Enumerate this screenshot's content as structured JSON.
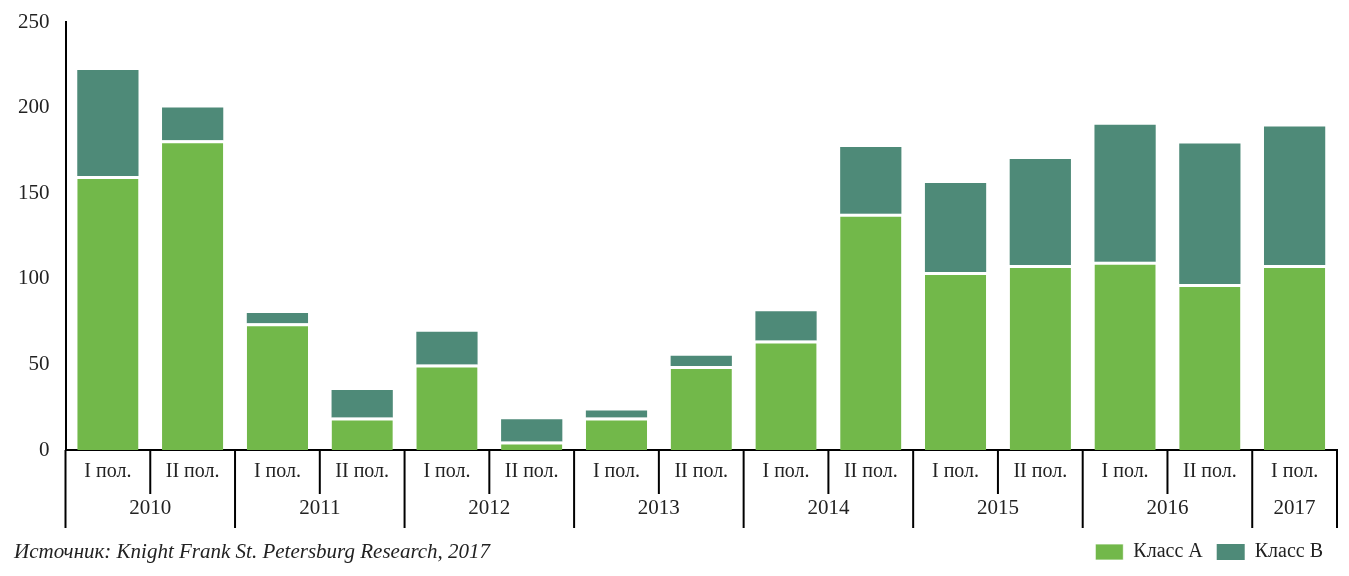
{
  "chart_data": {
    "type": "bar",
    "source": "Источник: Knight Frank St. Petersburg Research, 2017",
    "categories": [
      [
        "I пол.",
        "2010"
      ],
      [
        "II пол.",
        "2010"
      ],
      [
        "I пол.",
        "2011"
      ],
      [
        "II пол.",
        "2011"
      ],
      [
        "I пол.",
        "2012"
      ],
      [
        "II пол.",
        "2012"
      ],
      [
        "I пол.",
        "2013"
      ],
      [
        "II пол.",
        "2013"
      ],
      [
        "I пол.",
        "2014"
      ],
      [
        "II пол.",
        "2014"
      ],
      [
        "I пол.",
        "2015"
      ],
      [
        "II пол.",
        "2015"
      ],
      [
        "I пол.",
        "2016"
      ],
      [
        "II пол.",
        "2016"
      ],
      [
        "I пол.",
        "2017"
      ]
    ],
    "series": [
      {
        "name": "Класс A",
        "color": "#72b84a",
        "values": [
          160,
          181,
          74,
          19,
          50,
          5,
          19,
          49,
          64,
          138,
          104,
          108,
          110,
          97,
          108
        ]
      },
      {
        "name": "Класс B",
        "color": "#4e8a78",
        "values": [
          62,
          19,
          6,
          16,
          19,
          13,
          4,
          6,
          17,
          39,
          52,
          62,
          80,
          82,
          81
        ]
      }
    ],
    "stacked": true,
    "ylim": [
      0,
      250
    ],
    "yticks": [
      0,
      50,
      100,
      150,
      200,
      250
    ],
    "grid": false,
    "legend": "lower right"
  }
}
